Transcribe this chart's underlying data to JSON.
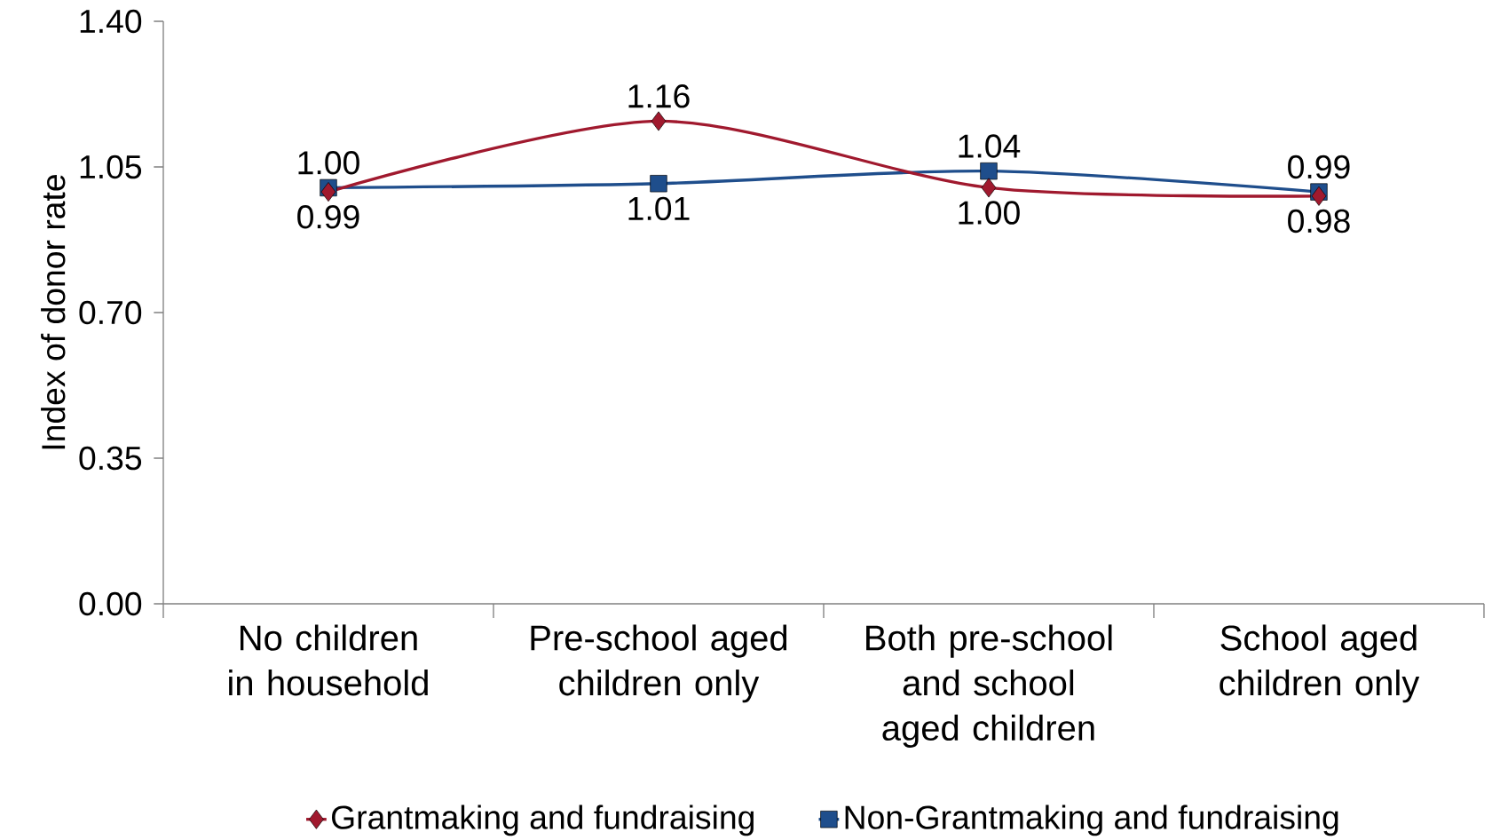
{
  "chart_data": {
    "type": "line",
    "ylabel": "Index of donor rate",
    "categories": [
      "No children in household",
      "Pre-school aged children only",
      "Both pre-school and school aged children",
      "School aged children only"
    ],
    "series": [
      {
        "name": "Grantmaking and fundraising",
        "color": "#a0192e",
        "marker": "diamond",
        "values": [
          0.99,
          1.16,
          1.0,
          0.98
        ],
        "value_labels": [
          "0.99",
          "1.16",
          "1.00",
          "0.98"
        ]
      },
      {
        "name": "Non-Grantmaking and fundraising",
        "color": "#1f4e8c",
        "marker": "square",
        "values": [
          1.0,
          1.01,
          1.04,
          0.99
        ],
        "value_labels": [
          "1.00",
          "1.01",
          "1.04",
          "0.99"
        ]
      }
    ],
    "ylim": [
      0,
      1.4
    ],
    "yticks": [
      {
        "value": 0,
        "label": "0.00"
      },
      {
        "value": 0.35,
        "label": "0.35"
      },
      {
        "value": 0.7,
        "label": "0.70"
      },
      {
        "value": 1.05,
        "label": "1.05"
      },
      {
        "value": 1.4,
        "label": "1.40"
      }
    ],
    "grid": false,
    "legend": "bottom"
  }
}
